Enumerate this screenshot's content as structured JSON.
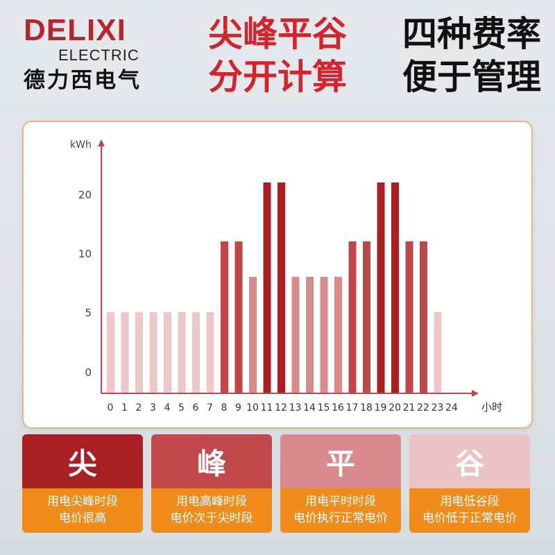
{
  "brand": {
    "name": "DELIXI",
    "sub": "ELECTRIC",
    "cn": "德力西电气"
  },
  "headline": {
    "line1_red": "尖峰平谷",
    "line1_black": "四种费率",
    "line2_red": "分开计算",
    "line2_black": "便于管理"
  },
  "colors": {
    "peak_top": "#a82022",
    "peak": "#c1464a",
    "flat": "#d88a8c",
    "valley": "#efc7c9",
    "accent": "#f08c1a"
  },
  "chart_data": {
    "type": "bar",
    "ylabel": "kWh",
    "xlabel": "小时",
    "ytick_labels": [
      "0",
      "5",
      "10",
      "20"
    ],
    "xtick_labels": [
      "0",
      "1",
      "2",
      "3",
      "4",
      "5",
      "6",
      "7",
      "8",
      "9",
      "10",
      "11",
      "12",
      "13",
      "14",
      "15",
      "16",
      "17",
      "18",
      "19",
      "20",
      "21",
      "22",
      "23",
      "24"
    ],
    "categories": [
      "0",
      "1",
      "2",
      "3",
      "4",
      "5",
      "6",
      "7",
      "8",
      "9",
      "10",
      "11",
      "12",
      "13",
      "14",
      "15",
      "16",
      "17",
      "18",
      "19",
      "20",
      "21",
      "22",
      "23"
    ],
    "values": [
      5,
      5,
      5,
      5,
      5,
      5,
      5,
      5,
      12,
      12,
      8,
      22,
      22,
      8,
      8,
      8,
      8,
      12,
      12,
      22,
      22,
      12,
      12,
      5
    ],
    "tiers": [
      "valley",
      "valley",
      "valley",
      "valley",
      "valley",
      "valley",
      "valley",
      "valley",
      "peak",
      "peak",
      "flat",
      "peak_top",
      "peak_top",
      "flat",
      "flat",
      "flat",
      "flat",
      "peak",
      "peak",
      "peak_top",
      "peak_top",
      "peak",
      "peak",
      "valley"
    ],
    "grid": false
  },
  "legend": [
    {
      "title": "尖",
      "line1": "用电尖峰时段",
      "line2": "电价很高",
      "color": "#a82022"
    },
    {
      "title": "峰",
      "line1": "用电高峰时段",
      "line2": "电价次于尖时段",
      "color": "#c1484b"
    },
    {
      "title": "平",
      "line1": "用电平时时段",
      "line2": "电价执行正常电价",
      "color": "#d88a8c"
    },
    {
      "title": "谷",
      "line1": "用电低谷段",
      "line2": "电价低于正常电价",
      "color": "#ebc3c5"
    }
  ]
}
